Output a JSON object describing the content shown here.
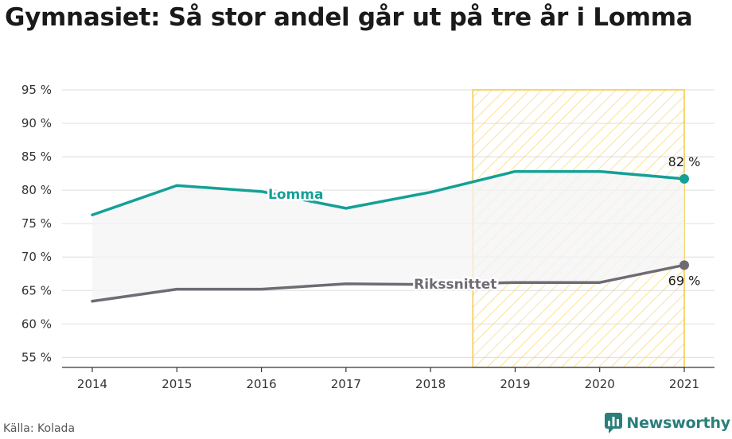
{
  "title": "Gymnasiet: Så stor andel går ut på tre år i Lomma",
  "source": "Källa: Kolada",
  "brand": "Newsworthy",
  "colors": {
    "lomma": "#14a096",
    "riket": "#6f6b73",
    "highlight": "#f3c94a",
    "area": "#f4f4f6",
    "grid": "#e3e3e3",
    "brand": "#2a7f7a"
  },
  "chart_data": {
    "type": "line",
    "x": [
      2014,
      2015,
      2016,
      2017,
      2018,
      2019,
      2020,
      2021
    ],
    "x_tick_labels": [
      "2014",
      "2015",
      "2016",
      "2017",
      "2018",
      "2019",
      "2020",
      "2021"
    ],
    "y_ticks": [
      55,
      60,
      65,
      70,
      75,
      80,
      85,
      90,
      95
    ],
    "y_tick_labels": [
      "55 %",
      "60 %",
      "65 %",
      "70 %",
      "75 %",
      "80 %",
      "85 %",
      "90 %",
      "95 %"
    ],
    "ylim": [
      53.5,
      95
    ],
    "grid": true,
    "highlight_range": [
      2018.5,
      2021
    ],
    "series": [
      {
        "name": "Lomma",
        "values": [
          76.3,
          80.7,
          79.8,
          77.3,
          79.7,
          82.8,
          82.8,
          81.7
        ],
        "end_label": "82 %"
      },
      {
        "name": "Rikssnittet",
        "values": [
          63.4,
          65.2,
          65.2,
          66.0,
          65.9,
          66.2,
          66.2,
          68.8
        ],
        "end_label": "69 %"
      }
    ]
  }
}
